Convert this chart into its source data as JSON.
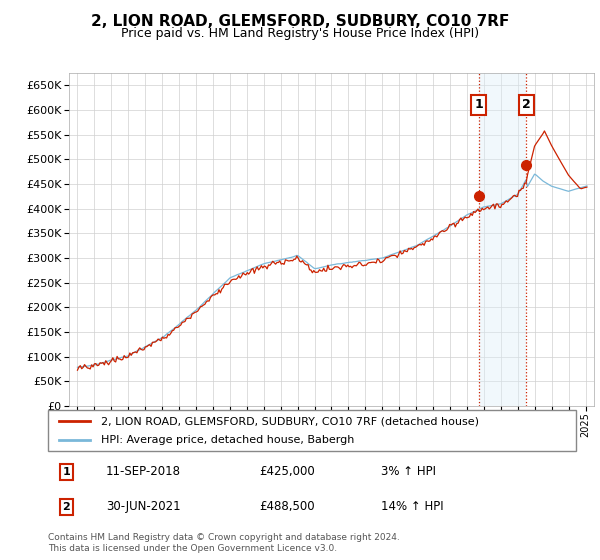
{
  "title": "2, LION ROAD, GLEMSFORD, SUDBURY, CO10 7RF",
  "subtitle": "Price paid vs. HM Land Registry's House Price Index (HPI)",
  "yticks": [
    0,
    50000,
    100000,
    150000,
    200000,
    250000,
    300000,
    350000,
    400000,
    450000,
    500000,
    550000,
    600000,
    650000
  ],
  "ylim": [
    0,
    675000
  ],
  "sale1_year": 2018.69,
  "sale1_price": 425000,
  "sale2_year": 2021.49,
  "sale2_price": 488500,
  "legend_line1": "2, LION ROAD, GLEMSFORD, SUDBURY, CO10 7RF (detached house)",
  "legend_line2": "HPI: Average price, detached house, Babergh",
  "table_row1": [
    "1",
    "11-SEP-2018",
    "£425,000",
    "3% ↑ HPI"
  ],
  "table_row2": [
    "2",
    "30-JUN-2021",
    "£488,500",
    "14% ↑ HPI"
  ],
  "footer": "Contains HM Land Registry data © Crown copyright and database right 2024.\nThis data is licensed under the Open Government Licence v3.0.",
  "hpi_color": "#7ab8d9",
  "price_color": "#cc2200",
  "vline_color": "#cc2200",
  "shade_color": "#ddeef8",
  "grid_color": "#d0d0d0",
  "label_color": "#cc2200"
}
